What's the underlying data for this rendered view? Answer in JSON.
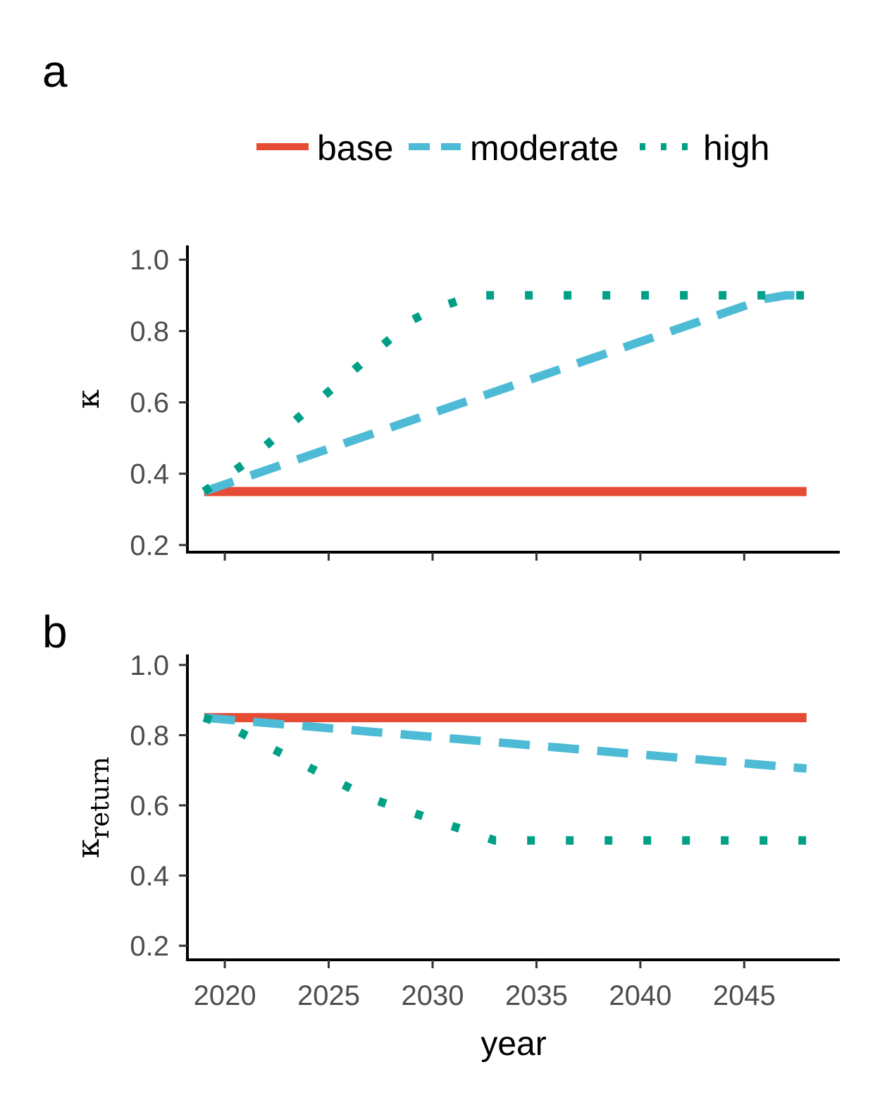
{
  "panels": [
    {
      "letter": "a",
      "ylabel": "κ"
    },
    {
      "letter": "b",
      "ylabel_main": "κ",
      "ylabel_sub": "return"
    }
  ],
  "xlabel": "year",
  "legend": {
    "entries": [
      {
        "name": "base",
        "color": "#E64B35",
        "style": "solid"
      },
      {
        "name": "moderate",
        "color": "#4DBBD5",
        "style": "dashed"
      },
      {
        "name": "high",
        "color": "#00A087",
        "style": "dotted"
      }
    ],
    "placement": "top"
  },
  "chart_data": [
    {
      "type": "line",
      "panel": "a",
      "ylabel": "κ",
      "xlabel": "",
      "x": [
        2019,
        2020,
        2021,
        2022,
        2023,
        2024,
        2025,
        2026,
        2027,
        2028,
        2029,
        2030,
        2031,
        2032,
        2033,
        2034,
        2035,
        2036,
        2037,
        2038,
        2039,
        2040,
        2041,
        2042,
        2043,
        2044,
        2045,
        2046,
        2047,
        2048
      ],
      "xlim": [
        2018.2,
        2049.6
      ],
      "ylim": [
        0.18,
        1.04
      ],
      "yticks": [
        0.2,
        0.4,
        0.6,
        0.8,
        1.0
      ],
      "ytick_labels": [
        "0.2",
        "0.4",
        "0.6",
        "0.8",
        "1.0"
      ],
      "series": [
        {
          "name": "base",
          "values": [
            0.35,
            0.35,
            0.35,
            0.35,
            0.35,
            0.35,
            0.35,
            0.35,
            0.35,
            0.35,
            0.35,
            0.35,
            0.35,
            0.35,
            0.35,
            0.35,
            0.35,
            0.35,
            0.35,
            0.35,
            0.35,
            0.35,
            0.35,
            0.35,
            0.35,
            0.35,
            0.35,
            0.35,
            0.35,
            0.35
          ]
        },
        {
          "name": "moderate",
          "values": [
            0.35,
            0.37,
            0.39,
            0.41,
            0.43,
            0.45,
            0.47,
            0.49,
            0.51,
            0.53,
            0.55,
            0.57,
            0.59,
            0.61,
            0.63,
            0.65,
            0.67,
            0.69,
            0.71,
            0.73,
            0.75,
            0.77,
            0.79,
            0.81,
            0.83,
            0.85,
            0.87,
            0.89,
            0.9,
            0.9
          ]
        },
        {
          "name": "high",
          "values": [
            0.35,
            0.39,
            0.43,
            0.48,
            0.53,
            0.58,
            0.63,
            0.68,
            0.73,
            0.78,
            0.83,
            0.86,
            0.88,
            0.9,
            0.9,
            0.9,
            0.9,
            0.9,
            0.9,
            0.9,
            0.9,
            0.9,
            0.9,
            0.9,
            0.9,
            0.9,
            0.9,
            0.9,
            0.9,
            0.9
          ]
        }
      ]
    },
    {
      "type": "line",
      "panel": "b",
      "ylabel": "κ return",
      "xlabel": "year",
      "x": [
        2019,
        2020,
        2021,
        2022,
        2023,
        2024,
        2025,
        2026,
        2027,
        2028,
        2029,
        2030,
        2031,
        2032,
        2033,
        2034,
        2035,
        2036,
        2037,
        2038,
        2039,
        2040,
        2041,
        2042,
        2043,
        2044,
        2045,
        2046,
        2047,
        2048
      ],
      "xlim": [
        2018.2,
        2049.6
      ],
      "ylim": [
        0.16,
        1.03
      ],
      "xticks": [
        2020,
        2025,
        2030,
        2035,
        2040,
        2045
      ],
      "xtick_labels": [
        "2020",
        "2025",
        "2030",
        "2035",
        "2040",
        "2045"
      ],
      "yticks": [
        0.2,
        0.4,
        0.6,
        0.8,
        1.0
      ],
      "ytick_labels": [
        "0.2",
        "0.4",
        "0.6",
        "0.8",
        "1.0"
      ],
      "series": [
        {
          "name": "base",
          "values": [
            0.85,
            0.85,
            0.85,
            0.85,
            0.85,
            0.85,
            0.85,
            0.85,
            0.85,
            0.85,
            0.85,
            0.85,
            0.85,
            0.85,
            0.85,
            0.85,
            0.85,
            0.85,
            0.85,
            0.85,
            0.85,
            0.85,
            0.85,
            0.85,
            0.85,
            0.85,
            0.85,
            0.85,
            0.85,
            0.85
          ]
        },
        {
          "name": "moderate",
          "values": [
            0.85,
            0.845,
            0.84,
            0.835,
            0.83,
            0.825,
            0.82,
            0.815,
            0.81,
            0.805,
            0.8,
            0.795,
            0.79,
            0.785,
            0.78,
            0.775,
            0.77,
            0.765,
            0.76,
            0.755,
            0.75,
            0.745,
            0.74,
            0.735,
            0.73,
            0.725,
            0.72,
            0.715,
            0.71,
            0.705
          ]
        },
        {
          "name": "high",
          "values": [
            0.85,
            0.83,
            0.8,
            0.77,
            0.74,
            0.71,
            0.68,
            0.65,
            0.62,
            0.6,
            0.58,
            0.56,
            0.54,
            0.52,
            0.5,
            0.5,
            0.5,
            0.5,
            0.5,
            0.5,
            0.5,
            0.5,
            0.5,
            0.5,
            0.5,
            0.5,
            0.5,
            0.5,
            0.5,
            0.5
          ]
        }
      ]
    }
  ]
}
